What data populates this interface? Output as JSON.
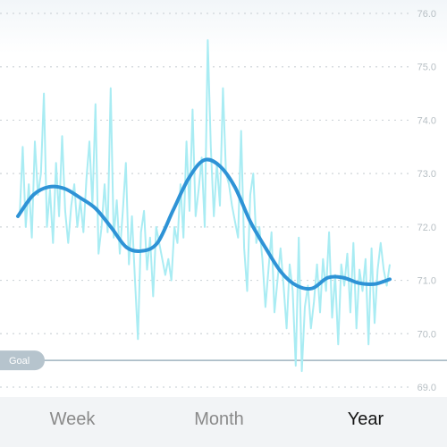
{
  "tabs": [
    {
      "label": "Week",
      "active": false
    },
    {
      "label": "Month",
      "active": false
    },
    {
      "label": "Year",
      "active": true
    }
  ],
  "goal": {
    "label": "Goal",
    "value": 69.5
  },
  "colors": {
    "raw_line": "#a9ecf3",
    "trend_line": "#2e93d6",
    "goal_line": "#9fb3bf",
    "goal_badge": "#b6c4cd",
    "grid": "#cfd5d9",
    "tick_text": "#b7bfc4"
  },
  "chart_data": {
    "type": "line",
    "ylim": [
      69.0,
      76.0
    ],
    "yticks": [
      "69.0",
      "70.0",
      "71.0",
      "72.0",
      "73.0",
      "74.0",
      "75.0",
      "76.0"
    ],
    "grid": true,
    "series": [
      {
        "name": "",
        "role": "daily",
        "values": [
          72.2,
          73.5,
          72.0,
          72.8,
          71.8,
          73.6,
          72.6,
          73.0,
          74.5,
          72.0,
          72.7,
          71.7,
          73.2,
          72.2,
          73.7,
          72.3,
          71.7,
          72.4,
          72.8,
          72.0,
          72.5,
          71.9,
          72.9,
          73.6,
          72.4,
          74.3,
          71.5,
          72.0,
          72.8,
          71.9,
          74.6,
          71.8,
          72.5,
          71.5,
          72.3,
          73.2,
          71.3,
          72.2,
          71.0,
          69.9,
          71.9,
          72.3,
          71.2,
          71.8,
          70.7,
          72.0,
          71.7,
          71.4,
          71.1,
          71.4,
          71.0,
          72.0,
          71.7,
          72.8,
          71.8,
          73.6,
          72.3,
          74.2,
          72.2,
          72.7,
          73.3,
          72.0,
          75.5,
          73.5,
          72.2,
          73.2,
          72.4,
          74.6,
          73.0,
          72.8,
          72.4,
          72.1,
          71.8,
          73.8,
          71.6,
          70.8,
          72.6,
          73.0,
          71.7,
          72.0,
          71.4,
          70.5,
          71.2,
          71.9,
          70.4,
          71.0,
          71.6,
          70.9,
          70.1,
          71.3,
          70.8,
          69.4,
          71.8,
          69.3,
          70.5,
          70.9,
          70.1,
          70.6,
          71.3,
          70.4,
          71.4,
          70.8,
          71.9,
          70.3,
          71.1,
          69.8,
          71.3,
          70.9,
          71.5,
          70.4,
          71.7,
          70.1,
          71.2,
          70.8,
          71.4,
          69.8,
          71.6,
          70.2,
          71.2,
          71.7,
          71.2,
          70.9,
          71.3
        ]
      },
      {
        "name": "",
        "role": "trend",
        "values": [
          72.2,
          72.6,
          72.75,
          72.72,
          72.55,
          72.35,
          72.0,
          71.62,
          71.55,
          71.7,
          72.3,
          72.9,
          73.25,
          73.15,
          72.75,
          72.1,
          71.6,
          71.15,
          70.9,
          70.85,
          71.05,
          71.05,
          70.95,
          70.93,
          71.02
        ]
      }
    ]
  }
}
